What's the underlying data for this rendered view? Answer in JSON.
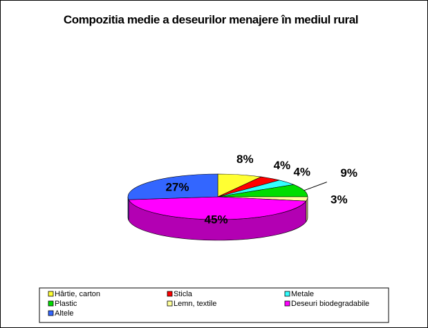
{
  "chart_data": {
    "type": "pie3d",
    "title": "Compozitia medie a deseurilor menajere în mediul rural",
    "categories": [
      "Hârtie, carton",
      "Sticla",
      "Metale",
      "Plastic",
      "Lemn, textile",
      "Deseuri biodegradabile",
      "Altele"
    ],
    "values": [
      8,
      4,
      4,
      9,
      3,
      45,
      27
    ],
    "value_labels": [
      "8%",
      "4%",
      "4%",
      "9%",
      "3%",
      "45%",
      "27%"
    ],
    "colors": [
      "#ffff33",
      "#ff0000",
      "#33ffff",
      "#00dd00",
      "#ffff99",
      "#ff00ff",
      "#3366ff"
    ],
    "legend": "bottom"
  }
}
